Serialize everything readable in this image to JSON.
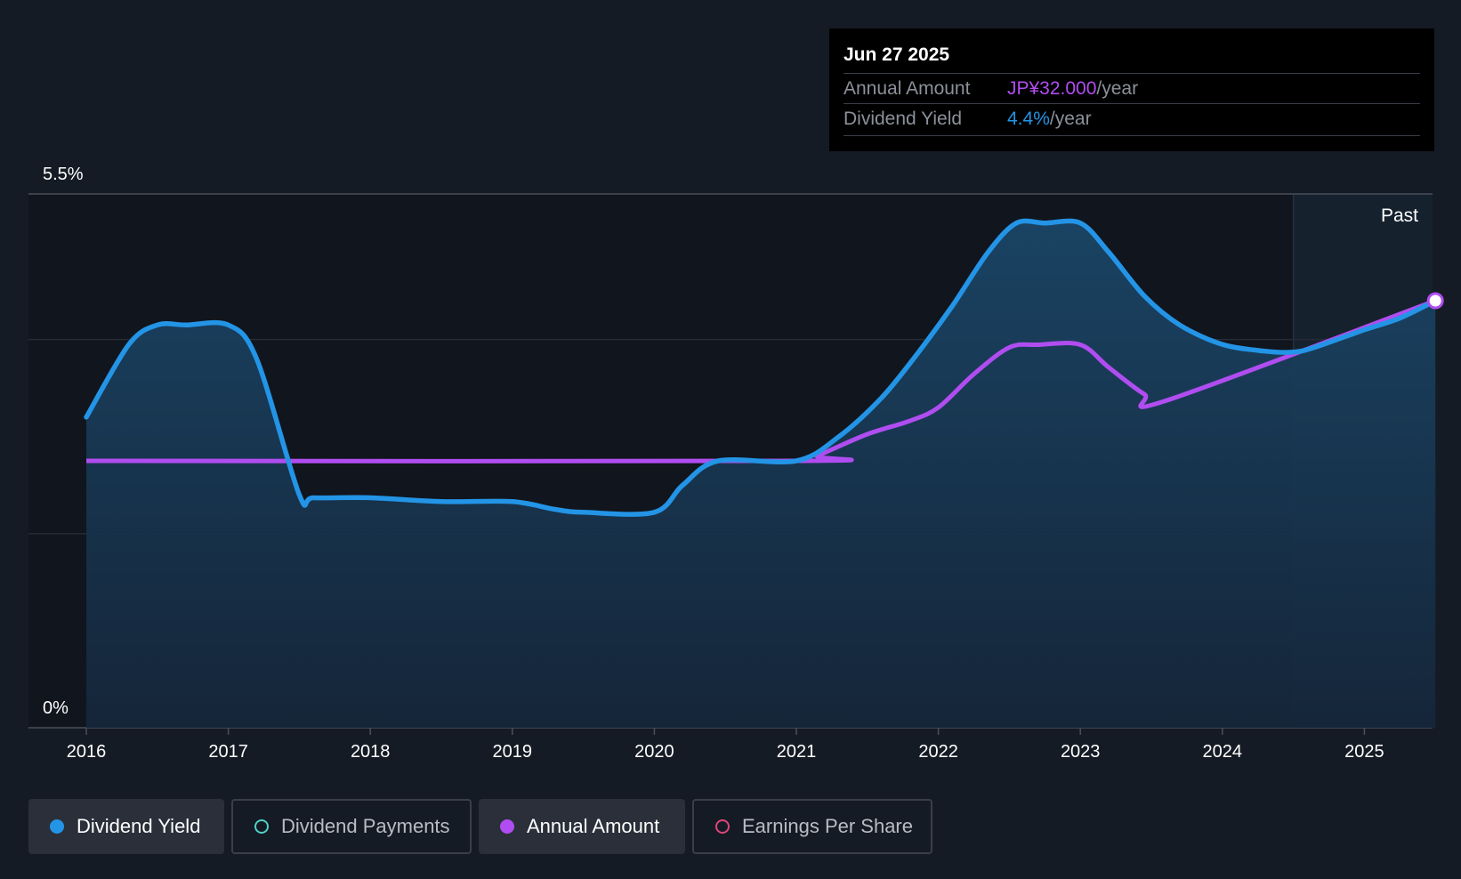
{
  "tooltip": {
    "date": "Jun 27 2025",
    "rows": [
      {
        "label": "Annual Amount",
        "value": "JP¥32.000",
        "unit": "/year",
        "color": "#b04df0"
      },
      {
        "label": "Dividend Yield",
        "value": "4.4%",
        "unit": "/year",
        "color": "#2394e6"
      }
    ]
  },
  "past_label": "Past",
  "legend": [
    {
      "label": "Dividend Yield",
      "active": true,
      "color": "#2394e6",
      "filled": true
    },
    {
      "label": "Dividend Payments",
      "active": false,
      "color": "#4fd1c5",
      "filled": false
    },
    {
      "label": "Annual Amount",
      "active": true,
      "color": "#b04df0",
      "filled": true
    },
    {
      "label": "Earnings Per Share",
      "active": false,
      "color": "#e0457b",
      "filled": false
    }
  ],
  "chart_data": {
    "type": "line",
    "title": "",
    "xlabel": "",
    "ylabel": "",
    "y_tick_labels": [
      "5.5%",
      "0%"
    ],
    "ylim": [
      0,
      5.5
    ],
    "xlim": [
      2016,
      2025.5
    ],
    "x_tick_labels": [
      "2016",
      "2017",
      "2018",
      "2019",
      "2020",
      "2021",
      "2022",
      "2023",
      "2024",
      "2025"
    ],
    "past_region_start": 2024.5,
    "series": [
      {
        "name": "Dividend Yield",
        "color": "#2394e6",
        "fill": true,
        "unit": "%",
        "points": [
          [
            2016.0,
            3.2
          ],
          [
            2016.3,
            3.95
          ],
          [
            2016.5,
            4.15
          ],
          [
            2016.7,
            4.15
          ],
          [
            2017.0,
            4.15
          ],
          [
            2017.2,
            3.8
          ],
          [
            2017.5,
            2.4
          ],
          [
            2017.6,
            2.37
          ],
          [
            2018.0,
            2.37
          ],
          [
            2018.5,
            2.33
          ],
          [
            2019.0,
            2.33
          ],
          [
            2019.3,
            2.25
          ],
          [
            2019.5,
            2.22
          ],
          [
            2020.0,
            2.22
          ],
          [
            2020.2,
            2.5
          ],
          [
            2020.45,
            2.75
          ],
          [
            2021.0,
            2.75
          ],
          [
            2021.3,
            3.0
          ],
          [
            2021.6,
            3.4
          ],
          [
            2021.85,
            3.85
          ],
          [
            2022.1,
            4.35
          ],
          [
            2022.35,
            4.9
          ],
          [
            2022.55,
            5.2
          ],
          [
            2022.75,
            5.2
          ],
          [
            2023.0,
            5.2
          ],
          [
            2023.2,
            4.9
          ],
          [
            2023.45,
            4.45
          ],
          [
            2023.7,
            4.15
          ],
          [
            2024.0,
            3.95
          ],
          [
            2024.3,
            3.88
          ],
          [
            2024.5,
            3.87
          ],
          [
            2024.65,
            3.92
          ],
          [
            2025.0,
            4.1
          ],
          [
            2025.25,
            4.22
          ],
          [
            2025.5,
            4.4
          ]
        ]
      },
      {
        "name": "Annual Amount",
        "color": "#b04df0",
        "fill": false,
        "unit": "JP¥/year",
        "points": [
          [
            2016.0,
            20.0
          ],
          [
            2021.0,
            20.0
          ],
          [
            2021.15,
            20.4
          ],
          [
            2021.5,
            22.0
          ],
          [
            2021.8,
            23.0
          ],
          [
            2022.0,
            24.0
          ],
          [
            2022.25,
            26.5
          ],
          [
            2022.5,
            28.5
          ],
          [
            2022.7,
            28.7
          ],
          [
            2023.0,
            28.7
          ],
          [
            2023.2,
            27.0
          ],
          [
            2023.45,
            25.0
          ],
          [
            2023.6,
            24.5
          ],
          [
            2025.5,
            32.0
          ]
        ]
      }
    ]
  }
}
